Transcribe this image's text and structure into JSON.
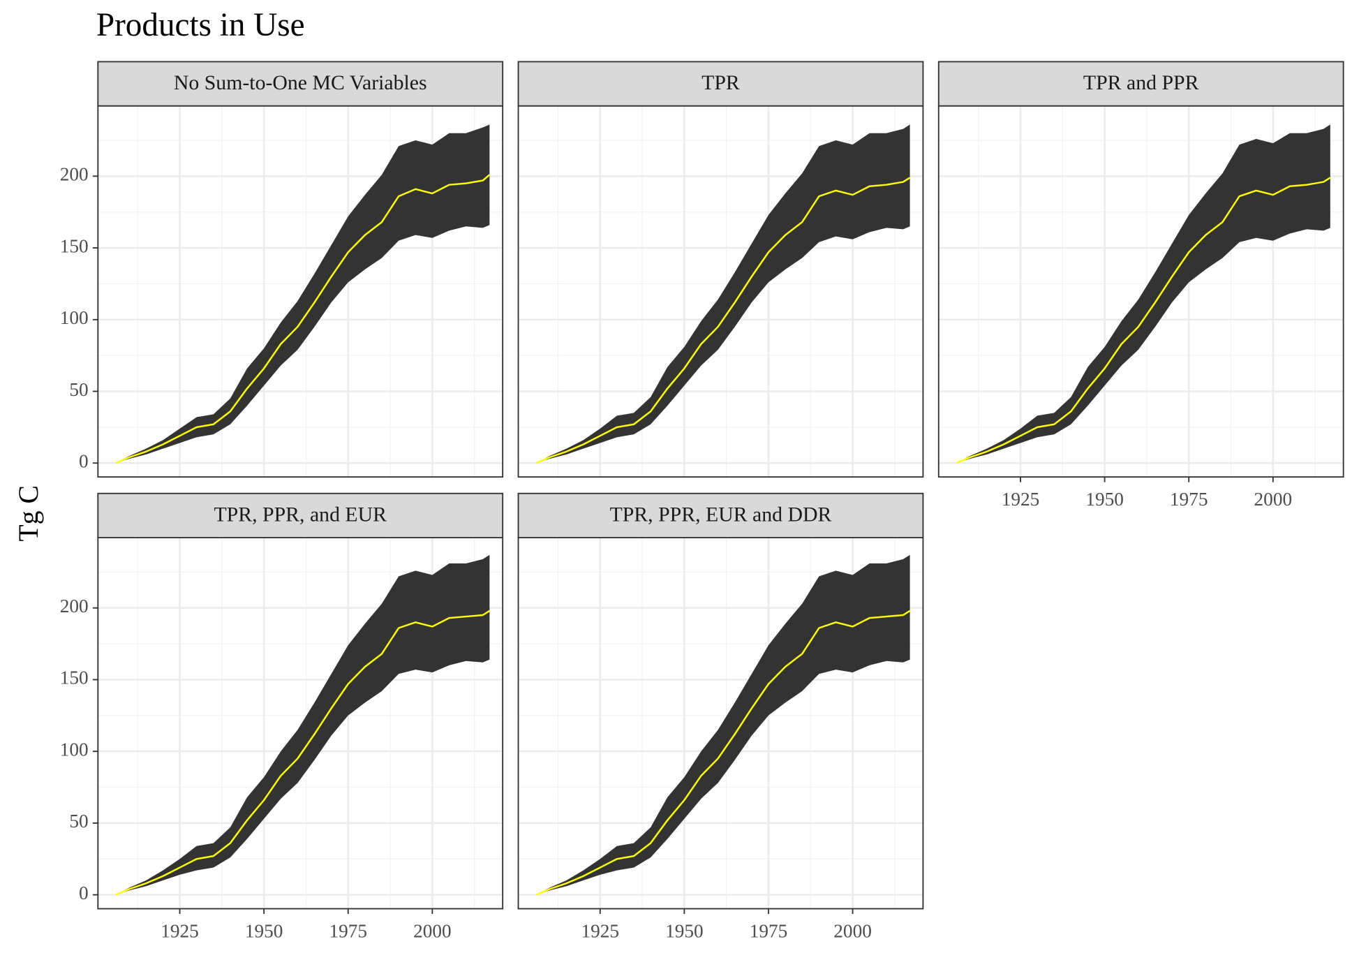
{
  "title": "Products in Use",
  "y_label": "Tg C",
  "chart_data": [
    {
      "type": "ribbon_line",
      "title": "No Sum-to-One MC Variables",
      "x": [
        1906,
        1910,
        1915,
        1920,
        1925,
        1930,
        1935,
        1940,
        1945,
        1950,
        1955,
        1960,
        1965,
        1970,
        1975,
        1980,
        1985,
        1990,
        1995,
        2000,
        2005,
        2010,
        2015,
        2017
      ],
      "series": [
        {
          "color": "#ffff00",
          "band_color": "#333333",
          "values": [
            0,
            4,
            8,
            13,
            19,
            25,
            27,
            36,
            52,
            66,
            83,
            95,
            112,
            130,
            147,
            159,
            168,
            186,
            191,
            188,
            194,
            195,
            197,
            201
          ],
          "lower": [
            0,
            3,
            6,
            10,
            14,
            18,
            20,
            27,
            40,
            54,
            68,
            79,
            95,
            112,
            126,
            135,
            143,
            155,
            159,
            157,
            162,
            165,
            164,
            166
          ],
          "upper": [
            0,
            5,
            10,
            16,
            24,
            32,
            34,
            45,
            66,
            80,
            98,
            113,
            132,
            152,
            172,
            187,
            201,
            221,
            225,
            222,
            230,
            230,
            234,
            236
          ]
        }
      ],
      "xlim": [
        1900.7,
        2020.9
      ],
      "xticks": [
        1925,
        1950,
        1975,
        2000
      ],
      "ylim": [
        -9.7,
        249
      ],
      "yticks": [
        0,
        50,
        100,
        150,
        200
      ],
      "grid": true
    },
    {
      "type": "ribbon_line",
      "title": "TPR",
      "x": [
        1906,
        1910,
        1915,
        1920,
        1925,
        1930,
        1935,
        1940,
        1945,
        1950,
        1955,
        1960,
        1965,
        1970,
        1975,
        1980,
        1985,
        1990,
        1995,
        2000,
        2005,
        2010,
        2015,
        2017
      ],
      "series": [
        {
          "color": "#ffff00",
          "band_color": "#333333",
          "values": [
            0,
            4,
            8,
            13,
            19,
            25,
            27,
            36,
            52,
            66,
            83,
            95,
            112,
            130,
            147,
            159,
            168,
            186,
            190,
            187,
            193,
            194,
            196,
            199
          ],
          "lower": [
            0,
            3,
            6,
            10,
            14,
            18,
            20,
            27,
            40,
            54,
            68,
            79,
            95,
            112,
            126,
            135,
            143,
            154,
            158,
            156,
            161,
            164,
            163,
            165
          ],
          "upper": [
            0,
            5,
            10,
            16,
            24,
            33,
            35,
            46,
            67,
            81,
            99,
            114,
            133,
            153,
            173,
            188,
            202,
            221,
            225,
            222,
            230,
            230,
            233,
            236
          ]
        }
      ],
      "xlim": [
        1900.7,
        2020.9
      ],
      "xticks": [
        1925,
        1950,
        1975,
        2000
      ],
      "ylim": [
        -9.7,
        249
      ],
      "yticks": [
        0,
        50,
        100,
        150,
        200
      ],
      "grid": true
    },
    {
      "type": "ribbon_line",
      "title": "TPR and PPR",
      "x": [
        1906,
        1910,
        1915,
        1920,
        1925,
        1930,
        1935,
        1940,
        1945,
        1950,
        1955,
        1960,
        1965,
        1970,
        1975,
        1980,
        1985,
        1990,
        1995,
        2000,
        2005,
        2010,
        2015,
        2017
      ],
      "series": [
        {
          "color": "#ffff00",
          "band_color": "#333333",
          "values": [
            0,
            4,
            8,
            13,
            19,
            25,
            27,
            36,
            52,
            66,
            83,
            95,
            112,
            130,
            147,
            159,
            168,
            186,
            190,
            187,
            193,
            194,
            196,
            199
          ],
          "lower": [
            0,
            3,
            6,
            10,
            14,
            18,
            20,
            27,
            40,
            54,
            68,
            79,
            95,
            112,
            126,
            135,
            143,
            154,
            157,
            155,
            160,
            163,
            162,
            164
          ],
          "upper": [
            0,
            5,
            10,
            16,
            24,
            33,
            35,
            46,
            67,
            81,
            99,
            114,
            133,
            153,
            173,
            188,
            202,
            222,
            226,
            223,
            230,
            230,
            233,
            236
          ]
        }
      ],
      "xlim": [
        1900.7,
        2020.9
      ],
      "xticks": [
        1925,
        1950,
        1975,
        2000
      ],
      "ylim": [
        -9.7,
        249
      ],
      "yticks": [
        0,
        50,
        100,
        150,
        200
      ],
      "grid": true
    },
    {
      "type": "ribbon_line",
      "title": "TPR, PPR, and EUR",
      "x": [
        1906,
        1910,
        1915,
        1920,
        1925,
        1930,
        1935,
        1940,
        1945,
        1950,
        1955,
        1960,
        1965,
        1970,
        1975,
        1980,
        1985,
        1990,
        1995,
        2000,
        2005,
        2010,
        2015,
        2017
      ],
      "series": [
        {
          "color": "#ffff00",
          "band_color": "#333333",
          "values": [
            0,
            4,
            8,
            13,
            19,
            25,
            27,
            36,
            52,
            66,
            83,
            95,
            112,
            130,
            147,
            159,
            168,
            186,
            190,
            187,
            193,
            194,
            195,
            198
          ],
          "lower": [
            0,
            3,
            6,
            10,
            14,
            17,
            19,
            26,
            39,
            53,
            67,
            78,
            94,
            111,
            125,
            134,
            142,
            154,
            157,
            155,
            160,
            163,
            162,
            164
          ],
          "upper": [
            0,
            5,
            10,
            17,
            25,
            34,
            36,
            47,
            68,
            82,
            100,
            115,
            134,
            154,
            174,
            189,
            203,
            222,
            226,
            223,
            231,
            231,
            234,
            237
          ]
        }
      ],
      "xlim": [
        1900.7,
        2020.9
      ],
      "xticks": [
        1925,
        1950,
        1975,
        2000
      ],
      "ylim": [
        -9.7,
        249
      ],
      "yticks": [
        0,
        50,
        100,
        150,
        200
      ],
      "grid": true
    },
    {
      "type": "ribbon_line",
      "title": "TPR, PPR, EUR and DDR",
      "x": [
        1906,
        1910,
        1915,
        1920,
        1925,
        1930,
        1935,
        1940,
        1945,
        1950,
        1955,
        1960,
        1965,
        1970,
        1975,
        1980,
        1985,
        1990,
        1995,
        2000,
        2005,
        2010,
        2015,
        2017
      ],
      "series": [
        {
          "color": "#ffff00",
          "band_color": "#333333",
          "values": [
            0,
            4,
            8,
            13,
            19,
            25,
            27,
            36,
            52,
            66,
            83,
            95,
            112,
            130,
            147,
            159,
            168,
            186,
            190,
            187,
            193,
            194,
            195,
            198
          ],
          "lower": [
            0,
            3,
            6,
            10,
            14,
            17,
            19,
            26,
            39,
            53,
            67,
            78,
            94,
            111,
            125,
            134,
            142,
            154,
            157,
            155,
            160,
            163,
            162,
            164
          ],
          "upper": [
            0,
            5,
            10,
            17,
            25,
            34,
            36,
            47,
            68,
            82,
            100,
            115,
            134,
            154,
            174,
            189,
            203,
            222,
            226,
            223,
            231,
            231,
            234,
            237
          ]
        }
      ],
      "xlim": [
        1900.7,
        2020.9
      ],
      "xticks": [
        1925,
        1950,
        1975,
        2000
      ],
      "ylim": [
        -9.7,
        249
      ],
      "yticks": [
        0,
        50,
        100,
        150,
        200
      ],
      "grid": true
    }
  ]
}
